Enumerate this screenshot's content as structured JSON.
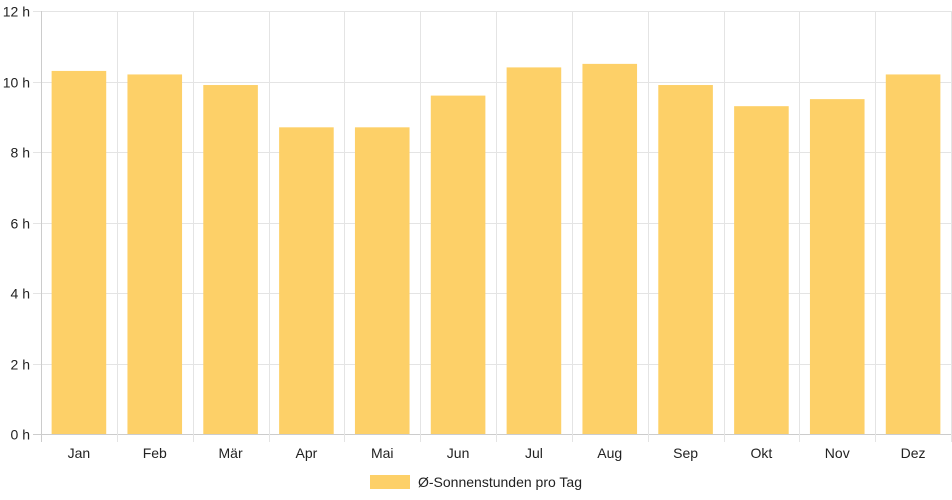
{
  "chart_data": {
    "type": "bar",
    "categories": [
      "Jan",
      "Feb",
      "Mär",
      "Apr",
      "Mai",
      "Jun",
      "Jul",
      "Aug",
      "Sep",
      "Okt",
      "Nov",
      "Dez"
    ],
    "series": [
      {
        "name": "Ø-Sonnenstunden pro Tag",
        "values": [
          10.3,
          10.2,
          9.9,
          8.7,
          8.7,
          9.6,
          10.4,
          10.5,
          9.9,
          9.3,
          9.5,
          10.2
        ]
      }
    ],
    "y_ticks": [
      "0 h",
      "2 h",
      "4 h",
      "6 h",
      "8 h",
      "10 h",
      "12 h"
    ],
    "ylim": [
      0,
      12
    ],
    "grid": true,
    "legend_position": "bottom",
    "colors": {
      "bar": "#fdd068",
      "grid": "#e4e4e4",
      "axis": "#cccccc",
      "text": "#222222"
    }
  },
  "legend": {
    "label": "Ø-Sonnenstunden pro Tag"
  }
}
